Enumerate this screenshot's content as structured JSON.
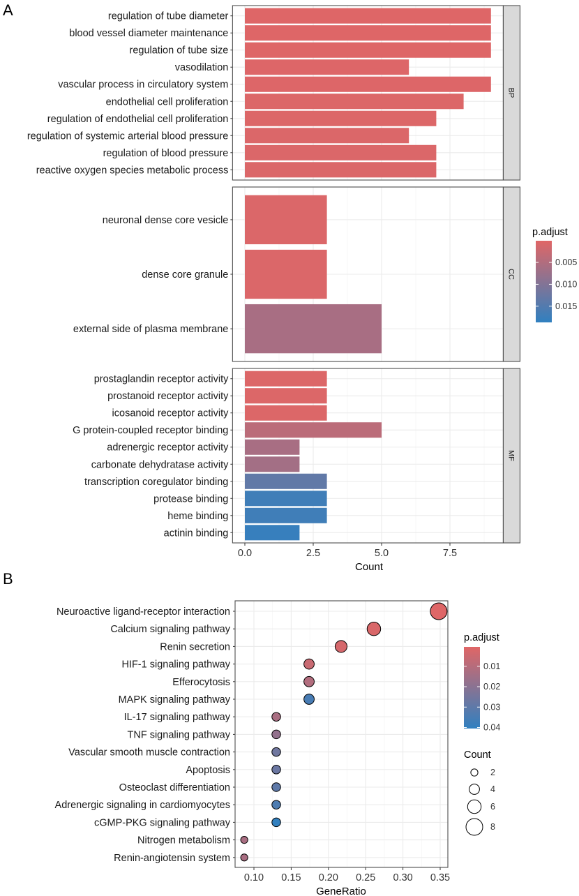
{
  "chart_data": [
    {
      "panel_label": "A",
      "type": "bar",
      "orientation": "horizontal",
      "xlabel": "Count",
      "xlim": [
        -0.45,
        9.45
      ],
      "xticks": [
        0.0,
        2.5,
        5.0,
        7.5
      ],
      "xtick_labels": [
        "0.0",
        "2.5",
        "5.0",
        "7.5"
      ],
      "grid": true,
      "facets": [
        {
          "name": "BP",
          "categories": [
            "regulation of tube diameter",
            "blood vessel diameter maintenance",
            "regulation of tube size",
            "vasodilation",
            "vascular process in circulatory system",
            "endothelial cell proliferation",
            "regulation of endothelial cell proliferation",
            "regulation of systemic arterial blood pressure",
            "regulation of blood pressure",
            "reactive oxygen species metabolic process"
          ],
          "values": [
            9,
            9,
            9,
            6,
            9,
            8,
            7,
            6,
            7,
            7
          ],
          "p_adjust": [
            0.0003,
            0.0003,
            0.0003,
            0.0004,
            0.0004,
            0.0005,
            0.0005,
            0.0006,
            0.0006,
            0.0006
          ]
        },
        {
          "name": "CC",
          "categories": [
            "neuronal dense core vesicle",
            "dense core granule",
            "external side of plasma membrane"
          ],
          "values": [
            3,
            3,
            5
          ],
          "p_adjust": [
            0.0006,
            0.0006,
            0.006
          ]
        },
        {
          "name": "MF",
          "categories": [
            "prostaglandin receptor activity",
            "prostanoid receptor activity",
            "icosanoid receptor activity",
            "G protein-coupled receptor binding",
            "adrenergic receptor activity",
            "carbonate dehydratase activity",
            "transcription coregulator binding",
            "protease binding",
            "heme binding",
            "actinin binding"
          ],
          "values": [
            3,
            3,
            3,
            5,
            2,
            2,
            3,
            3,
            3,
            2
          ],
          "p_adjust": [
            0.0005,
            0.0005,
            0.0005,
            0.004,
            0.006,
            0.0065,
            0.0135,
            0.017,
            0.017,
            0.018
          ]
        }
      ],
      "color_legend": {
        "title": "p.adjust",
        "range": [
          5e-05,
          0.0187
        ],
        "ticks": [
          0.005,
          0.01,
          0.015
        ],
        "tick_labels": [
          "0.005",
          "0.010",
          "0.015"
        ],
        "low_color": "#E06666",
        "high_color": "#3080C0",
        "placement": "right"
      }
    },
    {
      "panel_label": "B",
      "type": "scatter",
      "xlabel": "GeneRatio",
      "xlim": [
        0.0747,
        0.3603
      ],
      "xticks": [
        0.1,
        0.15,
        0.2,
        0.25,
        0.3,
        0.35
      ],
      "xtick_labels": [
        "0.10",
        "0.15",
        "0.20",
        "0.25",
        "0.30",
        "0.35"
      ],
      "grid": true,
      "categories": [
        "Neuroactive ligand-receptor interaction",
        "Calcium signaling pathway",
        "Renin secretion",
        "HIF-1 signaling pathway",
        "Efferocytosis",
        "MAPK signaling pathway",
        "IL-17 signaling pathway",
        "TNF signaling pathway",
        "Vascular smooth muscle contraction",
        "Apoptosis",
        "Osteoclast differentiation",
        "Adrenergic signaling in cardiomyocytes",
        "cGMP-PKG signaling pathway",
        "Nitrogen metabolism",
        "Renin-angiotensin system"
      ],
      "gene_ratio": [
        0.348,
        0.261,
        0.217,
        0.174,
        0.174,
        0.174,
        0.13,
        0.13,
        0.13,
        0.13,
        0.13,
        0.13,
        0.13,
        0.087,
        0.087
      ],
      "count": [
        8,
        6,
        5,
        4,
        4,
        4,
        3,
        3,
        3,
        3,
        3,
        3,
        3,
        2,
        2
      ],
      "p_adjust": [
        0.001,
        0.002,
        0.003,
        0.006,
        0.011,
        0.035,
        0.013,
        0.018,
        0.026,
        0.027,
        0.03,
        0.034,
        0.04,
        0.013,
        0.013
      ],
      "color_legend": {
        "title": "p.adjust",
        "range": [
          0.0005,
          0.0405
        ],
        "ticks": [
          0.01,
          0.02,
          0.03,
          0.04
        ],
        "tick_labels": [
          "0.01",
          "0.02",
          "0.03",
          "0.04"
        ],
        "low_color": "#E06666",
        "high_color": "#3080C0",
        "placement": "right"
      },
      "size_legend": {
        "title": "Count",
        "values": [
          2,
          4,
          6,
          8
        ],
        "labels": [
          "2",
          "4",
          "6",
          "8"
        ],
        "placement": "right"
      }
    }
  ]
}
